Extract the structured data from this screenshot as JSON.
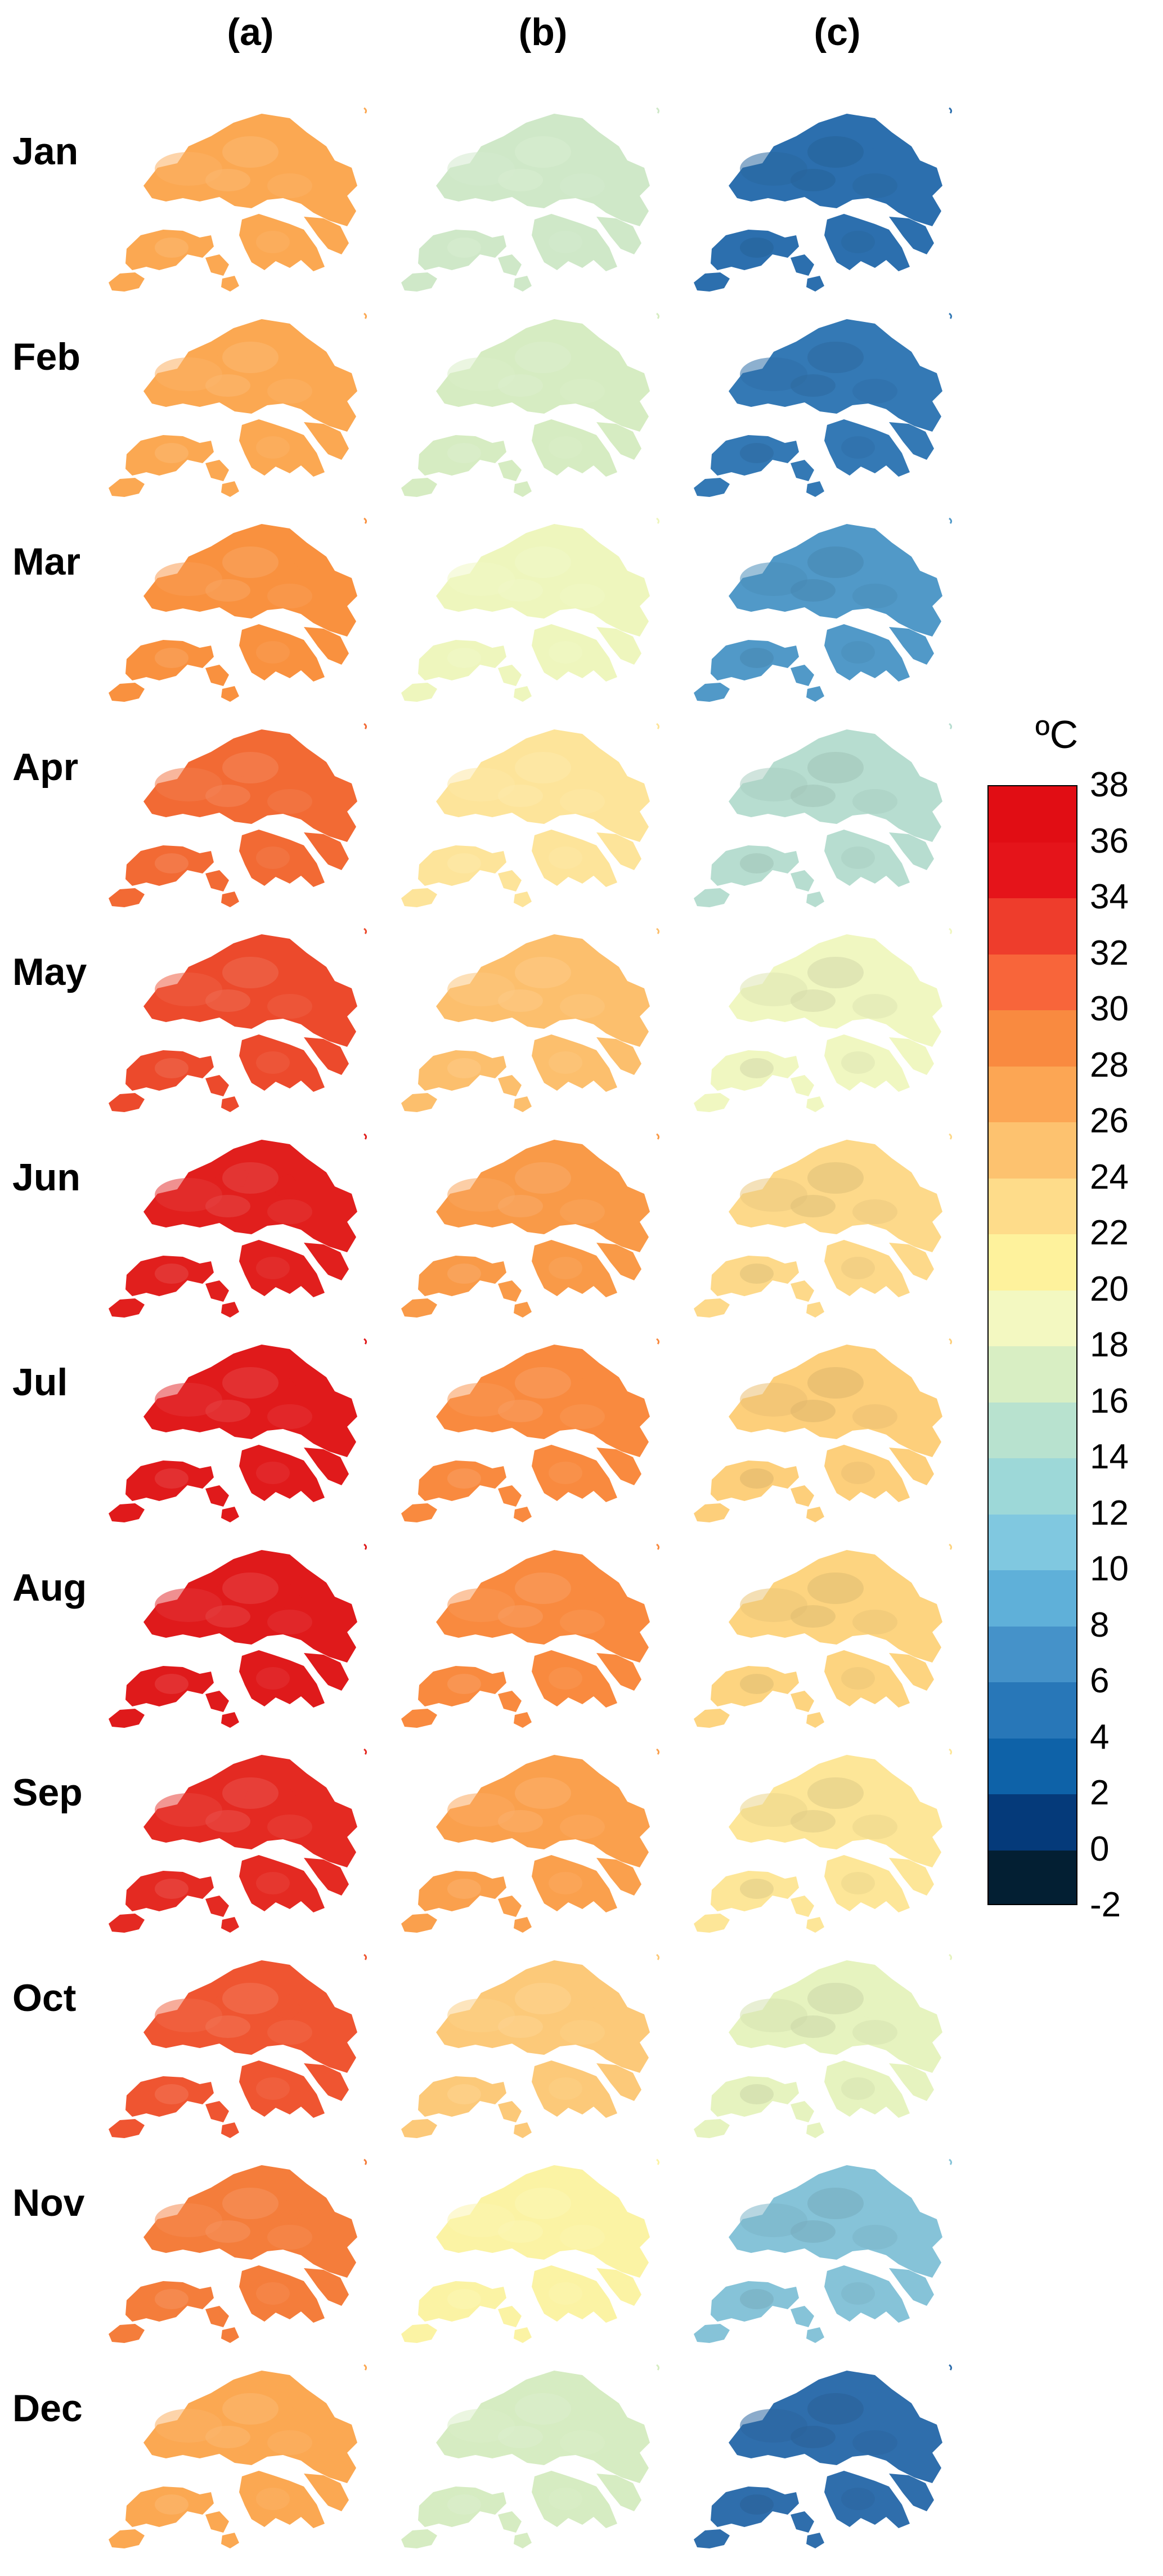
{
  "panel_headers": [
    "(a)",
    "(b)",
    "(c)"
  ],
  "unit_label": "ºC",
  "colorbar": {
    "ticks": [
      "38",
      "36",
      "34",
      "32",
      "30",
      "28",
      "26",
      "24",
      "22",
      "20",
      "18",
      "16",
      "14",
      "12",
      "10",
      "8",
      "6",
      "4",
      "2",
      "0",
      "-2"
    ],
    "bins": [
      {
        "range": [
          36,
          38
        ],
        "color": "#e10d14"
      },
      {
        "range": [
          34,
          36
        ],
        "color": "#e5141a"
      },
      {
        "range": [
          32,
          34
        ],
        "color": "#ee3d2c"
      },
      {
        "range": [
          30,
          32
        ],
        "color": "#f8653a"
      },
      {
        "range": [
          28,
          30
        ],
        "color": "#f98a40"
      },
      {
        "range": [
          26,
          28
        ],
        "color": "#fca654"
      },
      {
        "range": [
          24,
          26
        ],
        "color": "#fdc26f"
      },
      {
        "range": [
          22,
          24
        ],
        "color": "#fedc8a"
      },
      {
        "range": [
          20,
          22
        ],
        "color": "#fef29c"
      },
      {
        "range": [
          18,
          20
        ],
        "color": "#f3f8c1"
      },
      {
        "range": [
          16,
          18
        ],
        "color": "#d8eec3"
      },
      {
        "range": [
          14,
          16
        ],
        "color": "#b8e2cf"
      },
      {
        "range": [
          12,
          14
        ],
        "color": "#9dd8d8"
      },
      {
        "range": [
          10,
          12
        ],
        "color": "#80c8e0"
      },
      {
        "range": [
          8,
          10
        ],
        "color": "#5fb0d9"
      },
      {
        "range": [
          6,
          8
        ],
        "color": "#4592c9"
      },
      {
        "range": [
          4,
          6
        ],
        "color": "#2877b8"
      },
      {
        "range": [
          2,
          4
        ],
        "color": "#0e62a8"
      },
      {
        "range": [
          0,
          2
        ],
        "color": "#053a7a"
      },
      {
        "range": [
          -2,
          0
        ],
        "color": "#031f33"
      }
    ]
  },
  "months": [
    {
      "label": "Jan",
      "colors": [
        "#fba852",
        "#cfe8c8",
        "#2c6fae"
      ]
    },
    {
      "label": "Feb",
      "colors": [
        "#fba852",
        "#d6ecc2",
        "#3479b5"
      ]
    },
    {
      "label": "Mar",
      "colors": [
        "#f9913f",
        "#eef6bd",
        "#5199c8"
      ]
    },
    {
      "label": "Apr",
      "colors": [
        "#f26a34",
        "#fde49a",
        "#b7ddd0"
      ]
    },
    {
      "label": "May",
      "colors": [
        "#ec4a2c",
        "#fcbf6d",
        "#f0f7c1"
      ]
    },
    {
      "label": "Jun",
      "colors": [
        "#e11f1d",
        "#f99a48",
        "#fdd98a"
      ]
    },
    {
      "label": "Jul",
      "colors": [
        "#e01a1b",
        "#f98a3f",
        "#fdcf7b"
      ]
    },
    {
      "label": "Aug",
      "colors": [
        "#df1a1b",
        "#f98a3f",
        "#fdd480"
      ]
    },
    {
      "label": "Sep",
      "colors": [
        "#e42a22",
        "#faa04d",
        "#fde698"
      ]
    },
    {
      "label": "Oct",
      "colors": [
        "#ef5531",
        "#fcc979",
        "#e6f3bf"
      ]
    },
    {
      "label": "Nov",
      "colors": [
        "#f47d3b",
        "#fbf3a4",
        "#86c3d8"
      ]
    },
    {
      "label": "Dec",
      "colors": [
        "#fba852",
        "#d6ecc2",
        "#2f6eac"
      ]
    }
  ]
}
